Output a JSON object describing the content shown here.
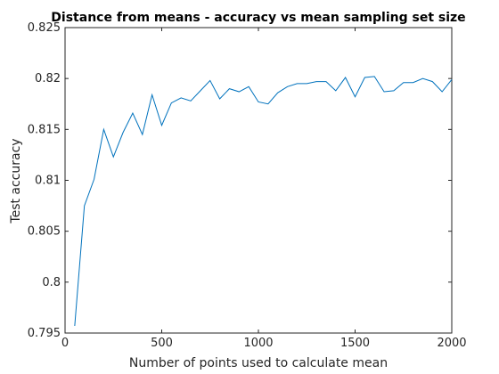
{
  "chart_data": {
    "type": "line",
    "title": "Distance from means - accuracy vs mean sampling set size",
    "xlabel": "Number of points used to calculate mean",
    "ylabel": "Test accuracy",
    "xlim": [
      0,
      2000
    ],
    "ylim": [
      0.795,
      0.825
    ],
    "xticks": [
      0,
      500,
      1000,
      1500,
      2000
    ],
    "xtick_labels": [
      "0",
      "500",
      "1000",
      "1500",
      "2000"
    ],
    "yticks": [
      0.795,
      0.8,
      0.805,
      0.81,
      0.815,
      0.82,
      0.825
    ],
    "ytick_labels": [
      "0.795",
      "0.8",
      "0.805",
      "0.81",
      "0.815",
      "0.82",
      "0.825"
    ],
    "grid": false,
    "line_color": "#0072BD",
    "series": [
      {
        "x": [
          50,
          100,
          150,
          200,
          250,
          300,
          350,
          400,
          450,
          500,
          550,
          600,
          650,
          700,
          750,
          800,
          850,
          900,
          950,
          1000,
          1050,
          1100,
          1150,
          1200,
          1250,
          1300,
          1350,
          1400,
          1450,
          1500,
          1550,
          1600,
          1650,
          1700,
          1750,
          1800,
          1850,
          1900,
          1950,
          2000
        ],
        "y": [
          0.7957,
          0.8075,
          0.8101,
          0.815,
          0.8123,
          0.8147,
          0.8166,
          0.8145,
          0.8184,
          0.8154,
          0.8176,
          0.8181,
          0.8178,
          0.8188,
          0.8198,
          0.818,
          0.819,
          0.8187,
          0.8192,
          0.8177,
          0.8175,
          0.8186,
          0.8192,
          0.8195,
          0.8195,
          0.8197,
          0.8197,
          0.8188,
          0.8201,
          0.8182,
          0.8201,
          0.8202,
          0.8187,
          0.8188,
          0.8196,
          0.8196,
          0.82,
          0.8197,
          0.8187,
          0.8199
        ]
      }
    ]
  }
}
